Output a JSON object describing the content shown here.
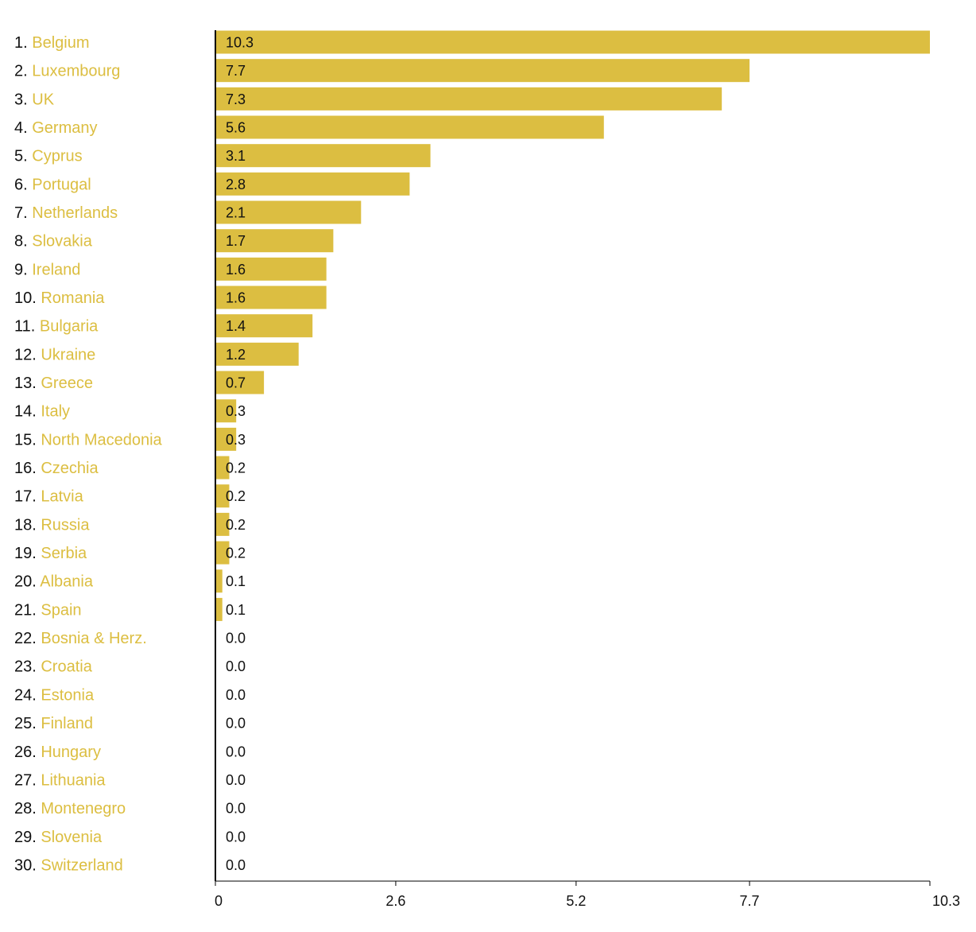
{
  "chart_data": {
    "type": "bar",
    "orientation": "horizontal",
    "title": "",
    "xlabel": "",
    "ylabel": "",
    "xlim": [
      0,
      10.3
    ],
    "xticks": [
      "0",
      "2.6",
      "5.2",
      "7.7",
      "10.3"
    ],
    "xtick_values": [
      0,
      2.6,
      5.2,
      7.7,
      10.3
    ],
    "grid": false,
    "bar_color": "#dcbe41",
    "label_color": "#dcbe41",
    "categories": [
      {
        "rank": "1.",
        "name": "Belgium",
        "value": 10.3,
        "label": "10.3"
      },
      {
        "rank": "2.",
        "name": "Luxembourg",
        "value": 7.7,
        "label": "7.7"
      },
      {
        "rank": "3.",
        "name": "UK",
        "value": 7.3,
        "label": "7.3"
      },
      {
        "rank": "4.",
        "name": "Germany",
        "value": 5.6,
        "label": "5.6"
      },
      {
        "rank": "5.",
        "name": "Cyprus",
        "value": 3.1,
        "label": "3.1"
      },
      {
        "rank": "6.",
        "name": "Portugal",
        "value": 2.8,
        "label": "2.8"
      },
      {
        "rank": "7.",
        "name": "Netherlands",
        "value": 2.1,
        "label": "2.1"
      },
      {
        "rank": "8.",
        "name": "Slovakia",
        "value": 1.7,
        "label": "1.7"
      },
      {
        "rank": "9.",
        "name": "Ireland",
        "value": 1.6,
        "label": "1.6"
      },
      {
        "rank": "10.",
        "name": "Romania",
        "value": 1.6,
        "label": "1.6"
      },
      {
        "rank": "11.",
        "name": "Bulgaria",
        "value": 1.4,
        "label": "1.4"
      },
      {
        "rank": "12.",
        "name": "Ukraine",
        "value": 1.2,
        "label": "1.2"
      },
      {
        "rank": "13.",
        "name": "Greece",
        "value": 0.7,
        "label": "0.7"
      },
      {
        "rank": "14.",
        "name": "Italy",
        "value": 0.3,
        "label": "0.3"
      },
      {
        "rank": "15.",
        "name": "North Macedonia",
        "value": 0.3,
        "label": "0.3"
      },
      {
        "rank": "16.",
        "name": "Czechia",
        "value": 0.2,
        "label": "0.2"
      },
      {
        "rank": "17.",
        "name": "Latvia",
        "value": 0.2,
        "label": "0.2"
      },
      {
        "rank": "18.",
        "name": "Russia",
        "value": 0.2,
        "label": "0.2"
      },
      {
        "rank": "19.",
        "name": "Serbia",
        "value": 0.2,
        "label": "0.2"
      },
      {
        "rank": "20.",
        "name": "Albania",
        "value": 0.1,
        "label": "0.1"
      },
      {
        "rank": "21.",
        "name": "Spain",
        "value": 0.1,
        "label": "0.1"
      },
      {
        "rank": "22.",
        "name": "Bosnia & Herz.",
        "value": 0.0,
        "label": "0.0"
      },
      {
        "rank": "23.",
        "name": "Croatia",
        "value": 0.0,
        "label": "0.0"
      },
      {
        "rank": "24.",
        "name": "Estonia",
        "value": 0.0,
        "label": "0.0"
      },
      {
        "rank": "25.",
        "name": "Finland",
        "value": 0.0,
        "label": "0.0"
      },
      {
        "rank": "26.",
        "name": "Hungary",
        "value": 0.0,
        "label": "0.0"
      },
      {
        "rank": "27.",
        "name": "Lithuania",
        "value": 0.0,
        "label": "0.0"
      },
      {
        "rank": "28.",
        "name": "Montenegro",
        "value": 0.0,
        "label": "0.0"
      },
      {
        "rank": "29.",
        "name": "Slovenia",
        "value": 0.0,
        "label": "0.0"
      },
      {
        "rank": "30.",
        "name": "Switzerland",
        "value": 0.0,
        "label": "0.0"
      }
    ]
  }
}
